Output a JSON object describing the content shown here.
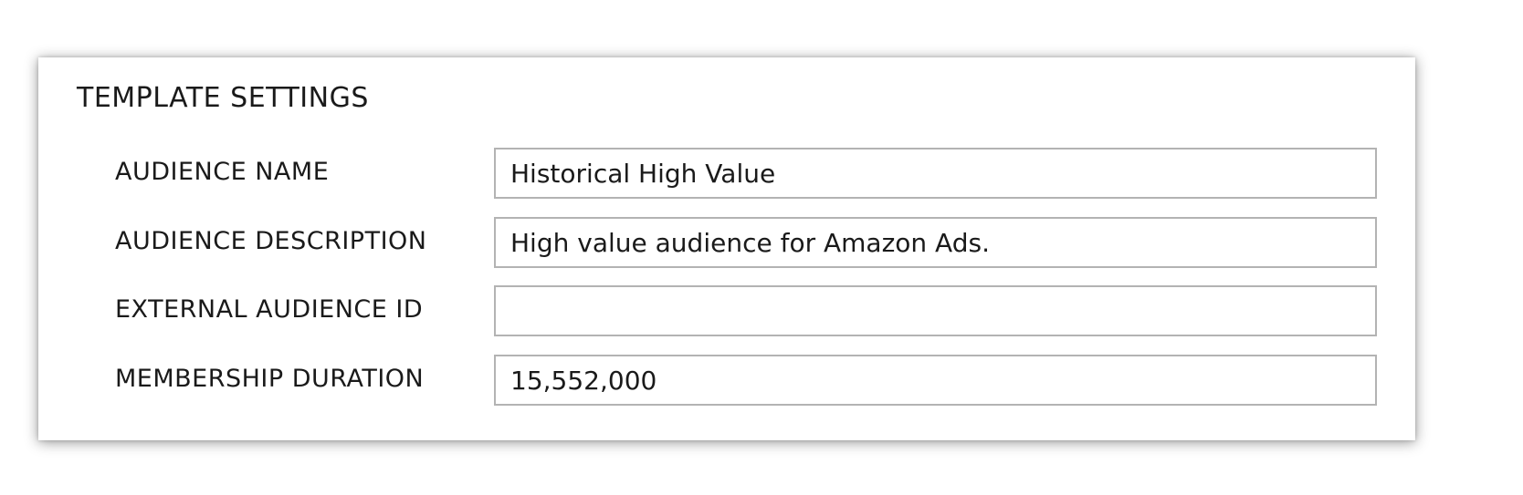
{
  "panel": {
    "title": "TEMPLATE SETTINGS",
    "fields": [
      {
        "label": "AUDIENCE NAME",
        "value": "Historical High Value",
        "placeholder": ""
      },
      {
        "label": "AUDIENCE DESCRIPTION",
        "value": "High value audience for Amazon Ads.",
        "placeholder": ""
      },
      {
        "label": "EXTERNAL AUDIENCE ID",
        "value": "",
        "placeholder": ""
      },
      {
        "label": "MEMBERSHIP DURATION",
        "value": "15,552,000",
        "placeholder": ""
      }
    ]
  }
}
